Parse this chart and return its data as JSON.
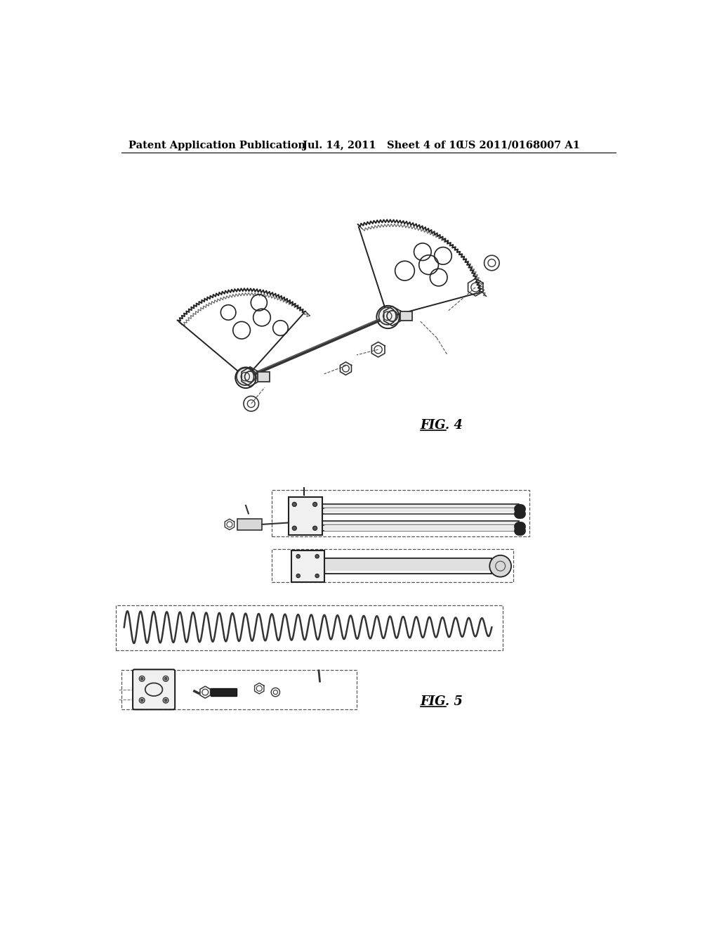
{
  "background_color": "#ffffff",
  "header_left": "Patent Application Publication",
  "header_center": "Jul. 14, 2011   Sheet 4 of 10",
  "header_right": "US 2011/0168007 A1",
  "fig4_label": "FIG. 4",
  "fig5_label": "FIG. 5",
  "header_fontsize": 10.5,
  "label_fontsize": 13
}
